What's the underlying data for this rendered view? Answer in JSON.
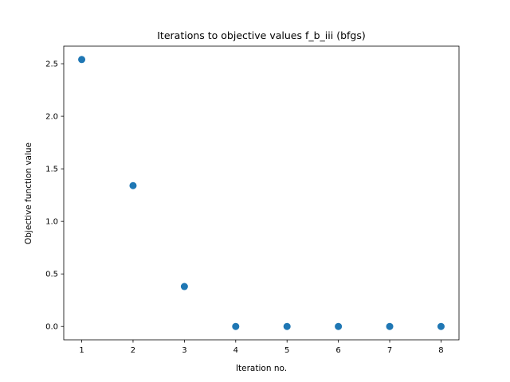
{
  "chart_data": {
    "type": "scatter",
    "title": "Iterations to objective values f_b_iii (bfgs)",
    "xlabel": "Iteration no.",
    "ylabel": "Objective function value",
    "x": [
      1,
      2,
      3,
      4,
      5,
      6,
      7,
      8
    ],
    "y": [
      2.54,
      1.34,
      0.38,
      0.0,
      0.0,
      0.0,
      0.0,
      0.0
    ],
    "xlim": [
      0.65,
      8.35
    ],
    "ylim": [
      -0.127,
      2.667
    ],
    "xticks": [
      1,
      2,
      3,
      4,
      5,
      6,
      7,
      8
    ],
    "xtick_labels": [
      "1",
      "2",
      "3",
      "4",
      "5",
      "6",
      "7",
      "8"
    ],
    "yticks": [
      0.0,
      0.5,
      1.0,
      1.5,
      2.0,
      2.5
    ],
    "ytick_labels": [
      "0.0",
      "0.5",
      "1.0",
      "1.5",
      "2.0",
      "2.5"
    ],
    "grid": false,
    "marker_color": "#1f77b4"
  }
}
